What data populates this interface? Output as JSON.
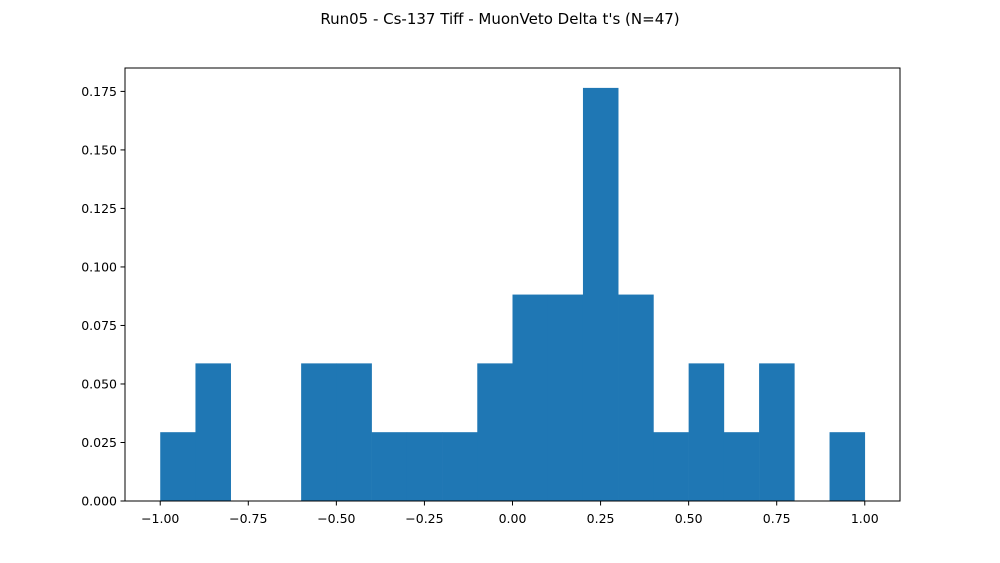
{
  "chart_data": {
    "type": "bar",
    "title": "Run05 - Cs-137 Tiff - MuonVeto Delta t's (N=47)",
    "xlabel": "",
    "ylabel": "",
    "xlim": [
      -1.1,
      1.1
    ],
    "ylim": [
      0.0,
      0.185
    ],
    "bin_edges": [
      -1.0,
      -0.9,
      -0.8,
      -0.7,
      -0.6,
      -0.5,
      -0.4,
      -0.3,
      -0.2,
      -0.1,
      0.0,
      0.1,
      0.2,
      0.3,
      0.4,
      0.5,
      0.6,
      0.7,
      0.8,
      0.9,
      1.0
    ],
    "values": [
      0.0294,
      0.0588,
      0.0,
      0.0,
      0.0588,
      0.0588,
      0.0294,
      0.0294,
      0.0294,
      0.0588,
      0.0882,
      0.0882,
      0.1765,
      0.0882,
      0.0294,
      0.0588,
      0.0294,
      0.0588,
      0.0,
      0.0294
    ],
    "xticks": [
      "−1.00",
      "−0.75",
      "−0.50",
      "−0.25",
      "0.00",
      "0.25",
      "0.50",
      "0.75",
      "1.00"
    ],
    "xtick_values": [
      -1.0,
      -0.75,
      -0.5,
      -0.25,
      0.0,
      0.25,
      0.5,
      0.75,
      1.0
    ],
    "yticks": [
      "0.000",
      "0.025",
      "0.050",
      "0.075",
      "0.100",
      "0.125",
      "0.150",
      "0.175"
    ],
    "ytick_values": [
      0.0,
      0.025,
      0.05,
      0.075,
      0.1,
      0.125,
      0.15,
      0.175
    ],
    "grid": false,
    "legend": "none",
    "bar_color": "#1f77b4"
  }
}
